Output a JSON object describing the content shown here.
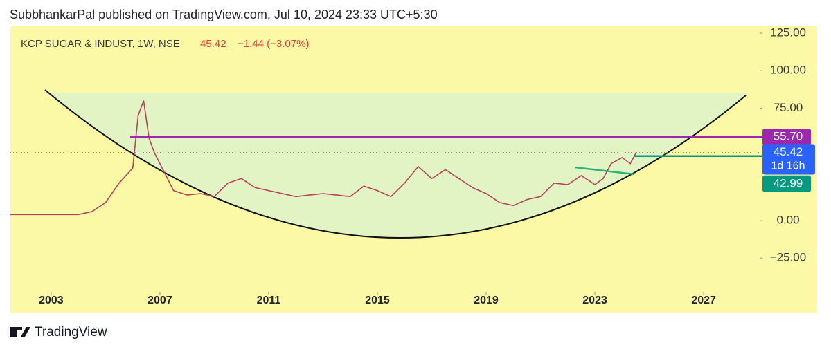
{
  "header": "SubbhankarPal published on TradingView.com, Jul 10, 2024 23:33 UTC+5:30",
  "footer": "TradingView",
  "chart_data": {
    "type": "line",
    "title": "KCP SUGAR & INDUST, 1W, NSE",
    "change": "−1.44 (−3.07%)",
    "countdown": "1d 16h",
    "x": [
      2001.5,
      2002,
      2003,
      2004,
      2004.5,
      2005,
      2005.5,
      2006,
      2006.2,
      2006.4,
      2006.6,
      2006.8,
      2007,
      2007.5,
      2008,
      2008.5,
      2009,
      2009.5,
      2010,
      2010.5,
      2011,
      2011.5,
      2012,
      2012.5,
      2013,
      2013.5,
      2014,
      2014.5,
      2015,
      2015.5,
      2016,
      2016.5,
      2017,
      2017.5,
      2018,
      2018.5,
      2019,
      2019.5,
      2020,
      2020.5,
      2021,
      2021.5,
      2022,
      2022.5,
      2023,
      2023.3,
      2023.6,
      2023.8,
      2024,
      2024.3,
      2024.52
    ],
    "series": [
      {
        "name": "KCP SUGAR & INDUST",
        "color": "#b5415a",
        "values": [
          4,
          4,
          4,
          4,
          6,
          12,
          25,
          35,
          70,
          80,
          55,
          45,
          38,
          20,
          17,
          18,
          16,
          25,
          28,
          22,
          20,
          18,
          16,
          17,
          18,
          17,
          16,
          23,
          20,
          16,
          25,
          36,
          28,
          34,
          28,
          22,
          18,
          12,
          10,
          14,
          16,
          25,
          24,
          30,
          24,
          28,
          38,
          40,
          42,
          38,
          45.42
        ]
      }
    ],
    "levels": [
      {
        "value": 55.7,
        "label": "55.70",
        "color": "#9c27b0"
      },
      {
        "value": 42.99,
        "label": "42.99",
        "color": "#089981"
      }
    ],
    "last_color": "#2962ff",
    "xlim": [
      2001.5,
      2029.06
    ],
    "xticks": [
      2003,
      2007,
      2011,
      2015,
      2019,
      2023,
      2027
    ],
    "ylim": [
      -42.9,
      129.6
    ],
    "yticks": [
      {
        "value": -25,
        "label": "−25.00"
      },
      {
        "value": 0,
        "label": "0.00"
      },
      {
        "value": 75,
        "label": "75.00"
      },
      {
        "value": 100,
        "label": "100.00"
      },
      {
        "value": 125,
        "label": "125.00"
      }
    ]
  }
}
